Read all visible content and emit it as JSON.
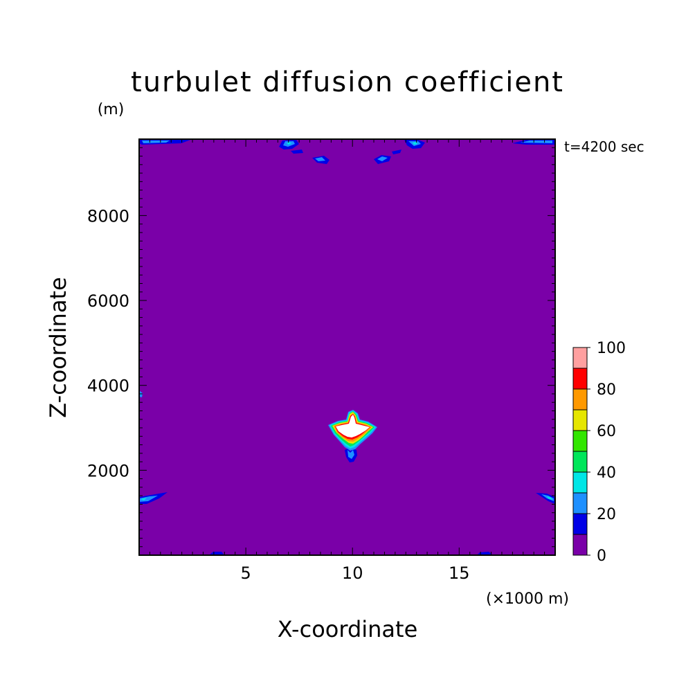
{
  "chart_data": {
    "type": "contour",
    "title": "turbulet diffusion coefficient",
    "xlabel": "X-coordinate",
    "ylabel": "Z-coordinate",
    "x_unit": "(×1000 m)",
    "y_unit": "(m)",
    "time_label": "t=4200 sec",
    "xlim": [
      0,
      19.5
    ],
    "ylim": [
      0,
      9800
    ],
    "x_ticks": [
      5,
      10,
      15
    ],
    "y_ticks": [
      2000,
      4000,
      6000,
      8000
    ],
    "background_level": 0,
    "colorbar": {
      "levels": [
        0,
        10,
        20,
        30,
        40,
        50,
        60,
        70,
        80,
        90,
        100
      ],
      "labels": [
        "0",
        "20",
        "40",
        "60",
        "80",
        "100"
      ],
      "label_values": [
        0,
        20,
        40,
        60,
        80,
        100
      ],
      "colors": [
        "#7a00a8",
        "#0000e6",
        "#1e90ff",
        "#00e6e6",
        "#00e65a",
        "#32e600",
        "#e6e600",
        "#ff9900",
        "#ff0000",
        "#ffa0a0"
      ]
    },
    "features": [
      {
        "name": "central-core",
        "x": 10.1,
        "z": 3000,
        "level": ">100",
        "color": "#ffffff"
      },
      {
        "name": "upper-left-edge",
        "x": 1.0,
        "z": 9780,
        "level": "10-30",
        "color": "#0000e6"
      },
      {
        "name": "upper-right-edge",
        "x": 18.5,
        "z": 9780,
        "level": "10-30",
        "color": "#0000e6"
      },
      {
        "name": "top-left-blob",
        "x": 6.9,
        "z": 9750,
        "level": "10-30",
        "color": "#1e90ff"
      },
      {
        "name": "top-right-blob",
        "x": 13.0,
        "z": 9750,
        "level": "10-30",
        "color": "#1e90ff"
      },
      {
        "name": "upper-left-small",
        "x": 8.3,
        "z": 9350,
        "level": "10-30",
        "color": "#1e90ff"
      },
      {
        "name": "upper-right-small",
        "x": 11.3,
        "z": 9350,
        "level": "10-30",
        "color": "#1e90ff"
      },
      {
        "name": "left-mid-edge",
        "x": 0.6,
        "z": 1350,
        "level": "10-30",
        "color": "#1e90ff"
      },
      {
        "name": "right-mid-edge",
        "x": 19.1,
        "z": 1350,
        "level": "10-30",
        "color": "#1e90ff"
      },
      {
        "name": "bottom-left",
        "x": 3.7,
        "z": 30,
        "level": "10-20",
        "color": "#0000e6"
      },
      {
        "name": "bottom-right",
        "x": 16.3,
        "z": 30,
        "level": "10-20",
        "color": "#0000e6"
      }
    ]
  }
}
